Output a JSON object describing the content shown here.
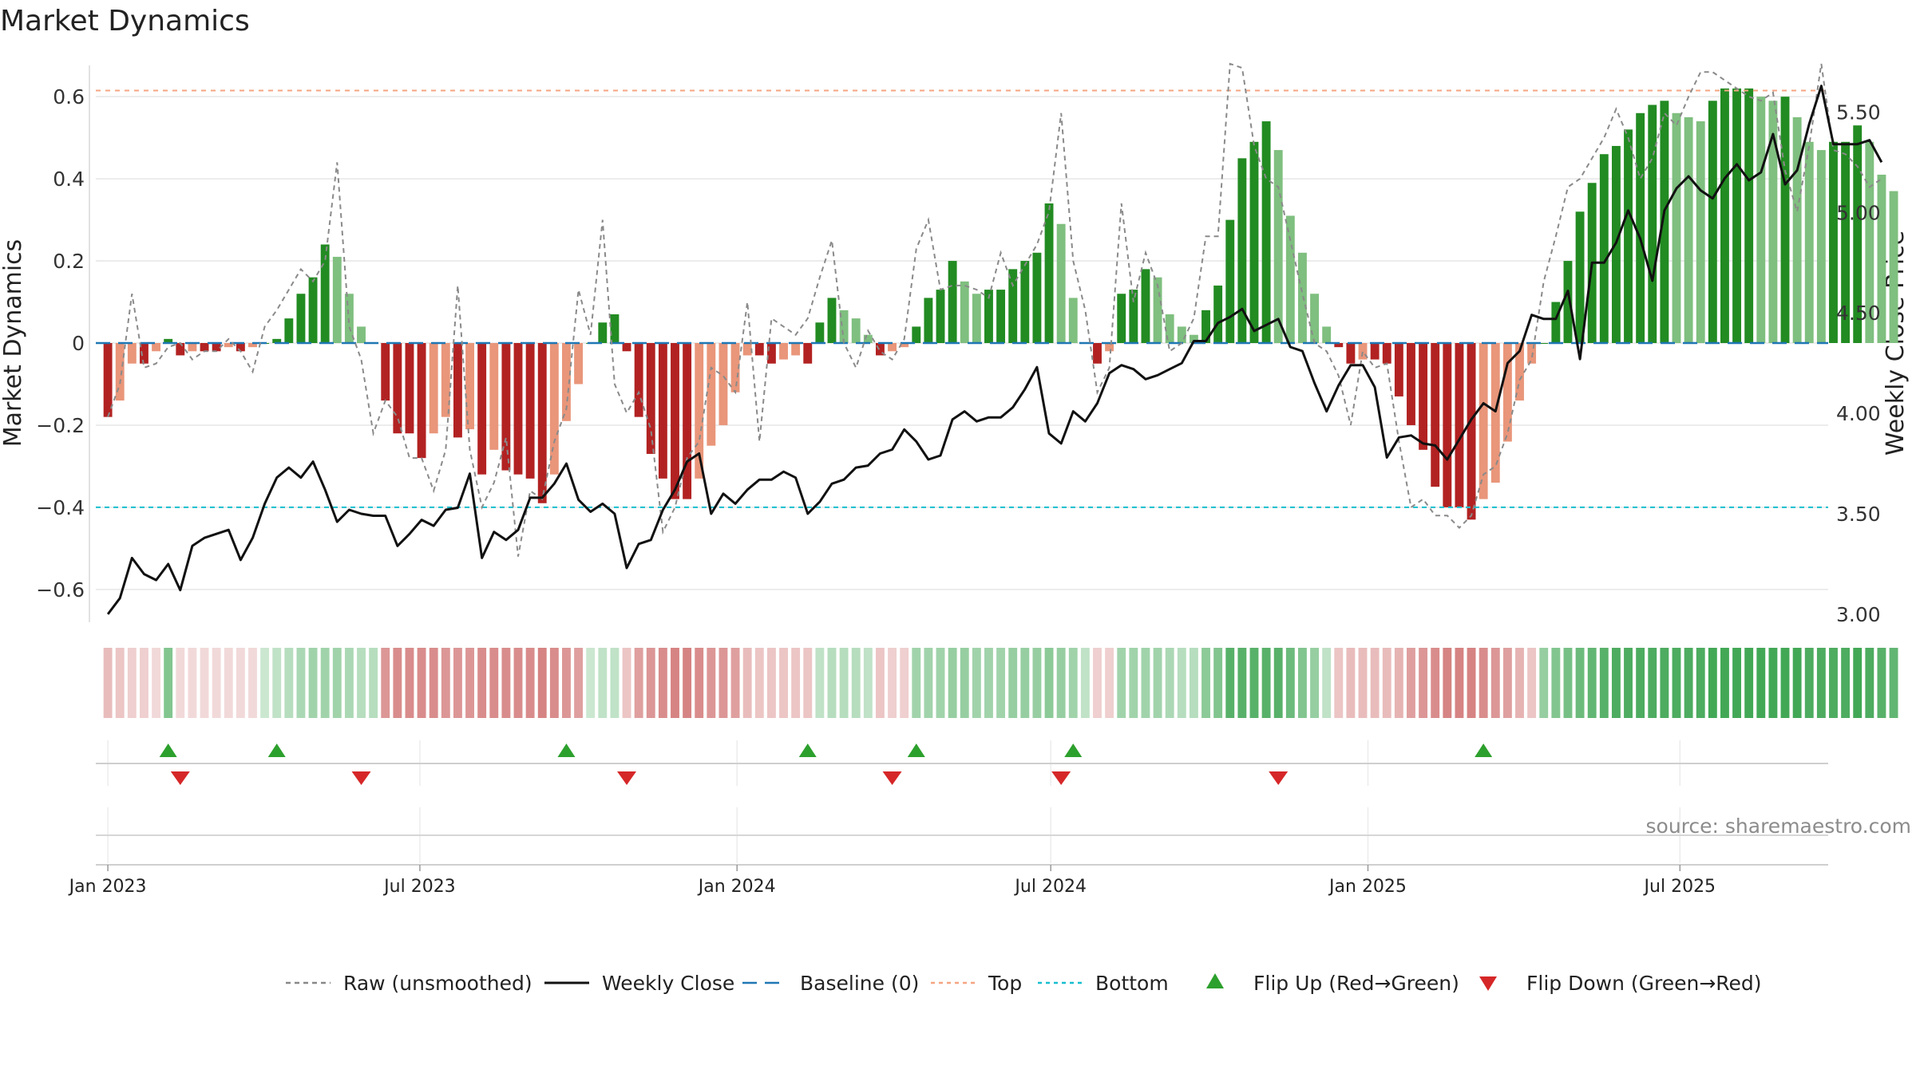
{
  "chart_data": {
    "type": "bar",
    "title": "Market Dynamics",
    "ylabel": "Market Dynamics",
    "y2label": "Weekly Close Price",
    "ylim": [
      -0.68,
      0.68
    ],
    "y2lim": [
      2.96,
      5.74
    ],
    "xlim": [
      "2022-12-25",
      "2025-09-25"
    ],
    "y_ticks": [
      {
        "v": 0.6,
        "label": "0.6"
      },
      {
        "v": 0.4,
        "label": "0.4"
      },
      {
        "v": 0.2,
        "label": "0.2"
      },
      {
        "v": 0,
        "label": "0"
      },
      {
        "v": -0.2,
        "label": "−0.2"
      },
      {
        "v": -0.4,
        "label": "−0.4"
      },
      {
        "v": -0.6,
        "label": "−0.6"
      }
    ],
    "y2_ticks": [
      {
        "v": 5.5,
        "label": "5.50"
      },
      {
        "v": 5.0,
        "label": "5.00"
      },
      {
        "v": 4.5,
        "label": "4.50"
      },
      {
        "v": 4.0,
        "label": "4.00"
      },
      {
        "v": 3.5,
        "label": "3.50"
      },
      {
        "v": 3.0,
        "label": "3.00"
      }
    ],
    "x_ticks": [
      {
        "date": "2023-01-01",
        "label": "Jan 2023"
      },
      {
        "date": "2023-07-01",
        "label": "Jul 2023"
      },
      {
        "date": "2024-01-01",
        "label": "Jan 2024"
      },
      {
        "date": "2024-07-01",
        "label": "Jul 2024"
      },
      {
        "date": "2025-01-01",
        "label": "Jan 2025"
      },
      {
        "date": "2025-07-01",
        "label": "Jul 2025"
      }
    ],
    "reference_lines": [
      {
        "name": "Baseline (0)",
        "value": 0,
        "color": "#1f77b4"
      },
      {
        "name": "Top",
        "value": 0.615,
        "color": "#f4a582"
      },
      {
        "name": "Bottom",
        "value": -0.4,
        "color": "#17becf"
      }
    ],
    "series": [
      {
        "name": "Market Dynamics",
        "type": "bar",
        "values": [
          -0.18,
          -0.14,
          -0.05,
          -0.05,
          -0.02,
          0.01,
          -0.03,
          -0.02,
          -0.02,
          -0.02,
          -0.01,
          -0.02,
          -0.01,
          0.0,
          0.01,
          0.06,
          0.12,
          0.16,
          0.24,
          0.21,
          0.12,
          0.04,
          0.0,
          -0.14,
          -0.22,
          -0.22,
          -0.28,
          -0.22,
          -0.18,
          -0.23,
          -0.21,
          -0.32,
          -0.26,
          -0.31,
          -0.32,
          -0.33,
          -0.39,
          -0.32,
          -0.19,
          -0.1,
          0.0,
          0.05,
          0.07,
          -0.02,
          -0.18,
          -0.27,
          -0.33,
          -0.38,
          -0.38,
          -0.33,
          -0.25,
          -0.2,
          -0.12,
          -0.03,
          -0.03,
          -0.05,
          -0.04,
          -0.03,
          -0.05,
          0.05,
          0.11,
          0.08,
          0.06,
          0.02,
          -0.03,
          -0.02,
          -0.01,
          0.04,
          0.11,
          0.13,
          0.2,
          0.15,
          0.12,
          0.13,
          0.13,
          0.18,
          0.2,
          0.22,
          0.34,
          0.29,
          0.11,
          0.0,
          -0.05,
          -0.02,
          0.12,
          0.13,
          0.18,
          0.16,
          0.07,
          0.04,
          0.02,
          0.08,
          0.14,
          0.3,
          0.45,
          0.49,
          0.54,
          0.47,
          0.31,
          0.22,
          0.12,
          0.04,
          -0.01,
          -0.05,
          -0.04,
          -0.04,
          -0.05,
          -0.13,
          -0.2,
          -0.26,
          -0.35,
          -0.4,
          -0.4,
          -0.43,
          -0.38,
          -0.34,
          -0.24,
          -0.14,
          -0.05,
          0.0,
          0.1,
          0.2,
          0.32,
          0.39,
          0.46,
          0.48,
          0.52,
          0.56,
          0.58,
          0.59,
          0.56,
          0.55,
          0.54,
          0.59,
          0.62,
          0.62,
          0.62,
          0.6,
          0.59,
          0.6,
          0.55,
          0.49,
          0.47,
          0.49,
          0.49,
          0.53,
          0.49,
          0.41,
          0.37
        ]
      },
      {
        "name": "Raw (unsmoothed)",
        "type": "line",
        "values": [
          -0.18,
          -0.1,
          0.12,
          -0.06,
          -0.05,
          -0.01,
          0.0,
          -0.04,
          -0.02,
          -0.02,
          0.01,
          -0.02,
          -0.07,
          0.04,
          0.08,
          0.13,
          0.18,
          0.15,
          0.2,
          0.44,
          0.04,
          -0.04,
          -0.22,
          -0.14,
          -0.18,
          -0.28,
          -0.28,
          -0.36,
          -0.26,
          0.14,
          -0.26,
          -0.4,
          -0.34,
          -0.23,
          -0.52,
          -0.36,
          -0.38,
          -0.24,
          -0.16,
          0.13,
          0.02,
          0.3,
          -0.1,
          -0.17,
          -0.12,
          -0.21,
          -0.46,
          -0.4,
          -0.28,
          -0.24,
          -0.06,
          -0.08,
          -0.12,
          0.1,
          -0.24,
          0.06,
          0.04,
          0.02,
          0.06,
          0.16,
          0.25,
          0.0,
          -0.06,
          0.03,
          -0.02,
          -0.04,
          0.01,
          0.23,
          0.3,
          0.13,
          0.14,
          0.14,
          0.13,
          0.11,
          0.22,
          0.14,
          0.19,
          0.24,
          0.32,
          0.56,
          0.2,
          0.08,
          -0.12,
          -0.06,
          0.34,
          0.1,
          0.22,
          0.14,
          -0.02,
          0.0,
          0.06,
          0.26,
          0.26,
          0.68,
          0.67,
          0.48,
          0.4,
          0.38,
          0.25,
          0.12,
          0.0,
          -0.02,
          -0.08,
          -0.2,
          -0.02,
          -0.06,
          -0.05,
          -0.24,
          -0.4,
          -0.38,
          -0.42,
          -0.42,
          -0.45,
          -0.42,
          -0.32,
          -0.3,
          -0.22,
          -0.09,
          -0.04,
          0.15,
          0.26,
          0.38,
          0.4,
          0.45,
          0.5,
          0.57,
          0.5,
          0.4,
          0.45,
          0.56,
          0.53,
          0.6,
          0.66,
          0.66,
          0.64,
          0.62,
          0.6,
          0.59,
          0.61,
          0.42,
          0.32,
          0.48,
          0.68,
          0.47,
          0.46,
          0.43,
          0.38,
          0.4
        ]
      },
      {
        "name": "Weekly Close",
        "type": "line",
        "axis": "right",
        "values": [
          3.0,
          3.08,
          3.28,
          3.2,
          3.17,
          3.25,
          3.12,
          3.34,
          3.38,
          3.4,
          3.42,
          3.27,
          3.38,
          3.55,
          3.68,
          3.73,
          3.68,
          3.76,
          3.62,
          3.46,
          3.52,
          3.5,
          3.49,
          3.49,
          3.34,
          3.4,
          3.47,
          3.44,
          3.52,
          3.53,
          3.7,
          3.28,
          3.41,
          3.37,
          3.42,
          3.58,
          3.58,
          3.65,
          3.75,
          3.57,
          3.51,
          3.55,
          3.5,
          3.23,
          3.35,
          3.37,
          3.52,
          3.62,
          3.76,
          3.8,
          3.5,
          3.6,
          3.55,
          3.62,
          3.67,
          3.67,
          3.71,
          3.68,
          3.5,
          3.56,
          3.65,
          3.67,
          3.73,
          3.74,
          3.8,
          3.82,
          3.92,
          3.86,
          3.77,
          3.79,
          3.97,
          4.01,
          3.96,
          3.98,
          3.98,
          4.03,
          4.12,
          4.23,
          3.9,
          3.85,
          4.01,
          3.96,
          4.05,
          4.2,
          4.24,
          4.22,
          4.17,
          4.19,
          4.22,
          4.25,
          4.36,
          4.36,
          4.45,
          4.48,
          4.52,
          4.41,
          4.44,
          4.47,
          4.33,
          4.31,
          4.15,
          4.01,
          4.14,
          4.24,
          4.24,
          4.13,
          3.78,
          3.88,
          3.89,
          3.85,
          3.84,
          3.77,
          3.87,
          3.97,
          4.05,
          4.01,
          4.25,
          4.31,
          4.49,
          4.47,
          4.47,
          4.61,
          4.27,
          4.75,
          4.75,
          4.85,
          5.01,
          4.87,
          4.66,
          5.01,
          5.12,
          5.18,
          5.11,
          5.07,
          5.17,
          5.24,
          5.16,
          5.2,
          5.39,
          5.14,
          5.21,
          5.44,
          5.63,
          5.34,
          5.34,
          5.34,
          5.36,
          5.25
        ]
      }
    ],
    "regime_strip_alpha": [
      0.35,
      0.3,
      0.25,
      0.25,
      0.2,
      0.6,
      0.2,
      0.2,
      0.2,
      0.2,
      0.2,
      0.2,
      0.2,
      0.25,
      0.3,
      0.35,
      0.4,
      0.45,
      0.45,
      0.45,
      0.4,
      0.35,
      0.35,
      0.55,
      0.6,
      0.6,
      0.6,
      0.6,
      0.55,
      0.55,
      0.55,
      0.6,
      0.6,
      0.6,
      0.6,
      0.6,
      0.65,
      0.6,
      0.55,
      0.5,
      0.25,
      0.3,
      0.3,
      0.3,
      0.5,
      0.55,
      0.6,
      0.65,
      0.65,
      0.6,
      0.55,
      0.55,
      0.5,
      0.35,
      0.3,
      0.3,
      0.3,
      0.3,
      0.3,
      0.3,
      0.35,
      0.35,
      0.35,
      0.3,
      0.3,
      0.25,
      0.25,
      0.45,
      0.45,
      0.45,
      0.5,
      0.5,
      0.45,
      0.45,
      0.45,
      0.5,
      0.5,
      0.5,
      0.55,
      0.5,
      0.45,
      0.3,
      0.25,
      0.25,
      0.45,
      0.45,
      0.45,
      0.45,
      0.4,
      0.35,
      0.35,
      0.55,
      0.6,
      0.8,
      0.8,
      0.8,
      0.8,
      0.8,
      0.7,
      0.6,
      0.5,
      0.3,
      0.3,
      0.35,
      0.35,
      0.35,
      0.35,
      0.4,
      0.5,
      0.55,
      0.6,
      0.65,
      0.65,
      0.65,
      0.6,
      0.55,
      0.5,
      0.4,
      0.3,
      0.5,
      0.6,
      0.65,
      0.7,
      0.75,
      0.8,
      0.85,
      0.85,
      0.85,
      0.85,
      0.85,
      0.85,
      0.85,
      0.85,
      0.9,
      0.9,
      0.9,
      0.9,
      0.9,
      0.9,
      0.9,
      0.9,
      0.85,
      0.85,
      0.85,
      0.85,
      0.9,
      0.85,
      0.8,
      0.75
    ],
    "flip_up_dates": [
      "2023-02-05",
      "2023-04-09",
      "2023-09-24",
      "2024-02-11",
      "2024-04-14",
      "2024-07-14",
      "2025-03-09"
    ],
    "flip_down_dates": [
      "2023-02-12",
      "2023-05-28",
      "2023-10-29",
      "2024-03-31",
      "2024-07-07",
      "2024-11-10"
    ],
    "source": "source: sharemaestro.com",
    "legend_position": "bottom",
    "grid": true,
    "legend": [
      {
        "label": "Raw (unsmoothed)",
        "kind": "dash",
        "color": "#888888"
      },
      {
        "label": "Weekly Close",
        "kind": "solid",
        "color": "#111111"
      },
      {
        "label": "Baseline (0)",
        "kind": "longdash",
        "color": "#1f77b4"
      },
      {
        "label": "Top",
        "kind": "dot",
        "color": "#f4a582"
      },
      {
        "label": "Bottom",
        "kind": "dot",
        "color": "#17becf"
      },
      {
        "label": "Flip Up (Red→Green)",
        "kind": "tri-up",
        "color": "#2ca02c"
      },
      {
        "label": "Flip Down (Green→Red)",
        "kind": "tri-down",
        "color": "#d62728"
      }
    ],
    "colors": {
      "green_strong": "#228b22",
      "green_light": "#7fbf7f",
      "red_strong": "#b22222",
      "red_light": "#e9967a",
      "strip_green": "#2e9e44",
      "strip_red": "#c04040",
      "grid": "#e6e6e6",
      "axis": "#444444"
    },
    "start_date": "2023-01-01"
  }
}
